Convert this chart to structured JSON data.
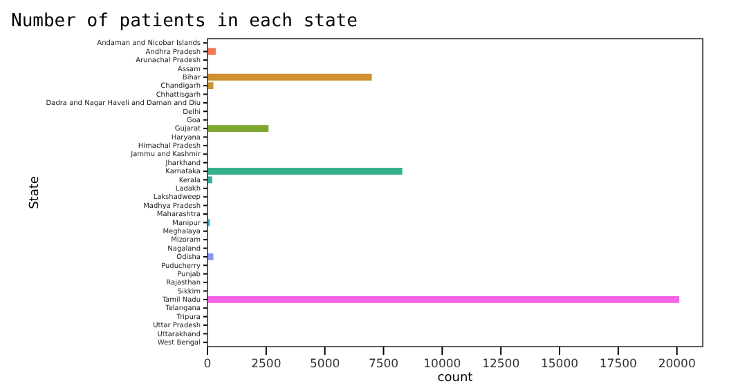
{
  "chart_data": {
    "type": "bar",
    "orientation": "horizontal",
    "title": "Number of patients in each state",
    "xlabel": "count",
    "ylabel": "State",
    "categories": [
      "Andaman and Nicobar Islands",
      "Andhra Pradesh",
      "Arunachal Pradesh",
      "Assam",
      "Bihar",
      "Chandigarh",
      "Chhattisgarh",
      "Dadra and Nagar Haveli and Daman and Diu",
      "Delhi",
      "Goa",
      "Gujarat",
      "Haryana",
      "Himachal Pradesh",
      "Jammu and Kashmir",
      "Jharkhand",
      "Karnataka",
      "Kerala",
      "Ladakh",
      "Lakshadweep",
      "Madhya Pradesh",
      "Maharashtra",
      "Manipur",
      "Meghalaya",
      "Mizoram",
      "Nagaland",
      "Odisha",
      "Puducherry",
      "Punjab",
      "Rajasthan",
      "Sikkim",
      "Tamil Nadu",
      "Telangana",
      "Tripura",
      "Uttar Pradesh",
      "Uttarakhand",
      "West Bengal"
    ],
    "values": [
      0,
      350,
      0,
      0,
      7000,
      250,
      0,
      0,
      0,
      0,
      2600,
      0,
      0,
      0,
      0,
      8300,
      200,
      0,
      0,
      0,
      0,
      100,
      0,
      0,
      0,
      250,
      0,
      0,
      0,
      0,
      20100,
      0,
      0,
      0,
      0,
      0
    ],
    "colors": [
      "#f77189",
      "#f7754f",
      "#e68332",
      "#d98a32",
      "#ce9032",
      "#c29532",
      "#b69a32",
      "#a99f31",
      "#9ca331",
      "#8ea531",
      "#7ea831",
      "#6aab31",
      "#4eae31",
      "#32b14f",
      "#33b07a",
      "#34af8d",
      "#35ae9b",
      "#36ada4",
      "#36acad",
      "#37abb6",
      "#38aabf",
      "#38a8c8",
      "#3aa5d3",
      "#4aa0e4",
      "#6e9bf4",
      "#8b95f4",
      "#a48cf4",
      "#bb83f4",
      "#d176f4",
      "#e36cf4",
      "#f563e6",
      "#f561dd",
      "#f564d0",
      "#f667c2",
      "#f66bb3",
      "#f76ea1"
    ],
    "xlim": [
      0,
      21100
    ],
    "xticks": [
      0,
      2500,
      5000,
      7500,
      10000,
      12500,
      15000,
      17500,
      20000
    ],
    "grid": false
  }
}
